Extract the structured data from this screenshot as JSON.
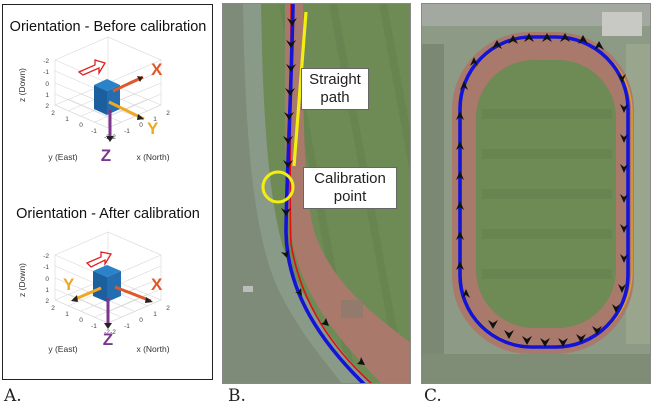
{
  "panel_a": {
    "label": "A.",
    "top_plot": {
      "title": "Orientation - Before calibration",
      "z_axis_label": "z (Down)",
      "x_axis_label": "x (North)",
      "y_axis_label": "y (East)",
      "z_ticks": [
        "-2",
        "-1",
        "0",
        "1",
        "2"
      ],
      "y_ticks": [
        "2",
        "1",
        "0",
        "-1",
        "-2"
      ],
      "x_ticks": [
        "-2",
        "-1",
        "0",
        "1",
        "2"
      ],
      "letters": [
        "X",
        "Y",
        "Z"
      ]
    },
    "bottom_plot": {
      "title": "Orientation - After calibration",
      "z_axis_label": "z (Down)",
      "x_axis_label": "x (North)",
      "y_axis_label": "y (East)",
      "z_ticks": [
        "-2",
        "-1",
        "0",
        "1",
        "2"
      ],
      "y_ticks": [
        "2",
        "1",
        "0",
        "-1",
        "-2"
      ],
      "x_ticks": [
        "-2",
        "-1",
        "0",
        "1",
        "2"
      ],
      "letters": [
        "X",
        "Y",
        "Z"
      ]
    }
  },
  "panel_b": {
    "label": "B.",
    "callout_straight_line1": "Straight",
    "callout_straight_line2": "path",
    "callout_calib_line1": "Calibration",
    "callout_calib_line2": "point"
  },
  "panel_c": {
    "label": "C."
  },
  "colors": {
    "x_axis": "#e0582a",
    "y_axis": "#f0a820",
    "z_axis": "#7d3590",
    "cube": "#1f6fb5",
    "track_blue": "#1414d8",
    "track_red": "#e01010",
    "annotation_yellow": "#f2ee10",
    "grass": "#6e8a55",
    "running_track": "#a9796b"
  }
}
